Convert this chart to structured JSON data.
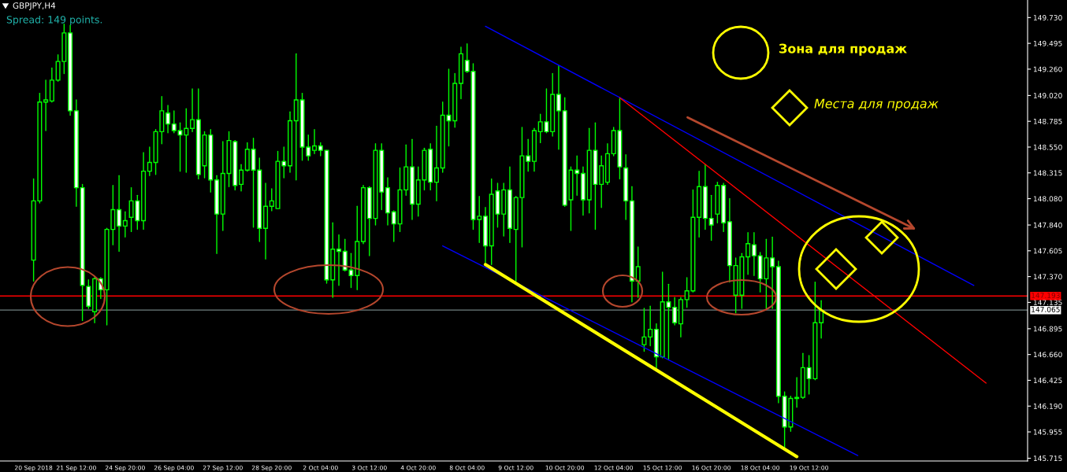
{
  "chart_data": {
    "type": "candlestick",
    "title": "GBPJPY,H4",
    "annotations": [
      "Spread: 149 points.",
      "Зона для продаж",
      "Места для продаж"
    ],
    "categories": [
      "20 Sep 2018",
      null,
      null,
      null,
      null,
      null,
      null,
      "21 Sep 12:00",
      null,
      null,
      null,
      null,
      null,
      null,
      null,
      "24 Sep 20:00",
      null,
      null,
      null,
      null,
      null,
      null,
      null,
      "26 Sep 04:00",
      null,
      null,
      null,
      null,
      null,
      null,
      null,
      "27 Sep 12:00",
      null,
      null,
      null,
      null,
      null,
      null,
      null,
      "28 Sep 20:00",
      null,
      null,
      null,
      null,
      null,
      null,
      null,
      "2 Oct 04:00",
      null,
      null,
      null,
      null,
      null,
      null,
      null,
      "3 Oct 12:00",
      null,
      null,
      null,
      null,
      null,
      null,
      null,
      "4 Oct 20:00",
      null,
      null,
      null,
      null,
      null,
      null,
      null,
      "8 Oct 04:00",
      null,
      null,
      null,
      null,
      null,
      null,
      null,
      "9 Oct 12:00",
      null,
      null,
      null,
      null,
      null,
      null,
      null,
      "10 Oct 20:00",
      null,
      null,
      null,
      null,
      null,
      null,
      null,
      "12 Oct 04:00",
      null,
      null,
      null,
      null,
      null,
      null,
      null,
      "15 Oct 12:00",
      null,
      null,
      null,
      null,
      null,
      null,
      null,
      "16 Oct 20:00",
      null,
      null,
      null,
      null,
      null,
      null,
      null,
      "18 Oct 04:00",
      null,
      null,
      null,
      null,
      null,
      null,
      null,
      "19 Oct 12:00",
      null,
      null,
      null,
      null,
      null,
      null,
      null,
      null,
      null,
      null,
      null,
      null,
      null,
      null,
      null,
      null,
      null,
      null,
      null,
      null,
      null,
      null,
      null,
      null,
      null,
      null,
      null,
      null,
      null,
      null,
      null,
      null,
      null,
      null,
      null
    ],
    "color": "#00ff00",
    "ohlc": [
      [
        147.52,
        148.26,
        147.33,
        148.06
      ],
      [
        148.06,
        149.04,
        148.04,
        148.96
      ],
      [
        148.96,
        149.16,
        148.7,
        148.98
      ],
      [
        148.97,
        149.27,
        148.96,
        149.16
      ],
      [
        149.16,
        149.39,
        149.15,
        149.33
      ],
      [
        149.33,
        149.67,
        149.22,
        149.59
      ],
      [
        149.59,
        149.66,
        148.84,
        148.88
      ],
      [
        148.88,
        148.98,
        148.01,
        148.18
      ],
      [
        148.18,
        148.21,
        146.97,
        147.29
      ],
      [
        147.28,
        147.34,
        147.08,
        147.1
      ],
      [
        147.05,
        147.37,
        146.95,
        147.35
      ],
      [
        147.35,
        147.36,
        147.17,
        147.25
      ],
      [
        147.25,
        147.81,
        146.93,
        147.8
      ],
      [
        147.8,
        148.2,
        147.66,
        147.98
      ],
      [
        147.98,
        148.29,
        147.6,
        147.83
      ],
      [
        147.83,
        147.96,
        147.73,
        147.88
      ],
      [
        147.91,
        148.18,
        147.78,
        148.06
      ],
      [
        148.06,
        148.11,
        147.8,
        147.88
      ],
      [
        147.88,
        148.5,
        147.8,
        148.33
      ],
      [
        148.33,
        148.55,
        148.29,
        148.41
      ],
      [
        148.41,
        148.71,
        148.3,
        148.69
      ],
      [
        148.69,
        149.01,
        148.58,
        148.88
      ],
      [
        148.86,
        148.93,
        148.68,
        148.76
      ],
      [
        148.76,
        148.88,
        148.68,
        148.7
      ],
      [
        148.7,
        148.77,
        148.33,
        148.66
      ],
      [
        148.66,
        148.9,
        148.32,
        148.72
      ],
      [
        148.72,
        149.08,
        148.69,
        148.8
      ],
      [
        148.8,
        149.08,
        148.26,
        148.3
      ],
      [
        148.38,
        148.69,
        148.27,
        148.66
      ],
      [
        148.66,
        148.71,
        148.14,
        148.25
      ],
      [
        148.25,
        148.29,
        147.58,
        147.94
      ],
      [
        147.94,
        148.6,
        147.79,
        148.31
      ],
      [
        148.31,
        148.69,
        148.19,
        148.61
      ],
      [
        148.6,
        148.61,
        148.16,
        148.2
      ],
      [
        148.21,
        148.39,
        148.15,
        148.34
      ],
      [
        148.34,
        148.59,
        148.33,
        148.53
      ],
      [
        148.53,
        148.63,
        147.82,
        148.34
      ],
      [
        148.34,
        148.45,
        147.69,
        147.81
      ],
      [
        147.81,
        148.22,
        147.53,
        148.01
      ],
      [
        148.01,
        148.17,
        147.97,
        148.06
      ],
      [
        147.99,
        148.51,
        147.99,
        148.42
      ],
      [
        148.42,
        148.55,
        148.27,
        148.38
      ],
      [
        148.38,
        148.87,
        148.32,
        148.79
      ],
      [
        148.79,
        149.4,
        148.25,
        148.98
      ],
      [
        148.98,
        149.04,
        148.43,
        148.55
      ],
      [
        148.55,
        148.66,
        148.43,
        148.47
      ],
      [
        148.52,
        148.71,
        148.49,
        148.56
      ],
      [
        148.56,
        148.59,
        148.47,
        148.52
      ],
      [
        148.52,
        148.52,
        147.31,
        147.34
      ],
      [
        147.34,
        147.86,
        147.18,
        147.62
      ],
      [
        147.62,
        147.75,
        147.29,
        147.6
      ],
      [
        147.6,
        147.71,
        147.42,
        147.43
      ],
      [
        147.43,
        147.58,
        147.27,
        147.38
      ],
      [
        147.38,
        148.01,
        147.25,
        147.69
      ],
      [
        147.69,
        148.2,
        147.67,
        148.18
      ],
      [
        148.18,
        148.19,
        147.56,
        147.9
      ],
      [
        147.9,
        148.58,
        147.84,
        148.52
      ],
      [
        148.52,
        148.58,
        147.98,
        148.14
      ],
      [
        148.18,
        148.27,
        147.84,
        147.95
      ],
      [
        147.96,
        147.97,
        147.69,
        147.85
      ],
      [
        147.85,
        148.36,
        147.78,
        148.16
      ],
      [
        148.16,
        148.57,
        148.11,
        148.37
      ],
      [
        148.37,
        148.62,
        147.89,
        148.03
      ],
      [
        148.03,
        148.37,
        147.92,
        148.25
      ],
      [
        148.25,
        148.54,
        148.16,
        148.52
      ],
      [
        148.53,
        148.58,
        148.16,
        148.23
      ],
      [
        148.23,
        148.74,
        148.06,
        148.36
      ],
      [
        148.36,
        148.96,
        148.32,
        148.84
      ],
      [
        148.84,
        149.26,
        148.56,
        148.79
      ],
      [
        148.79,
        149.22,
        148.73,
        149.13
      ],
      [
        149.13,
        149.46,
        148.99,
        149.4
      ],
      [
        149.34,
        149.49,
        149.23,
        149.24
      ],
      [
        149.24,
        149.31,
        147.8,
        147.89
      ],
      [
        147.89,
        148.1,
        147.68,
        147.92
      ],
      [
        147.92,
        148.0,
        147.5,
        147.65
      ],
      [
        147.65,
        148.26,
        147.48,
        148.12
      ],
      [
        148.15,
        148.22,
        147.82,
        147.94
      ],
      [
        147.94,
        148.22,
        147.74,
        148.16
      ],
      [
        148.16,
        148.37,
        147.68,
        147.81
      ],
      [
        147.8,
        148.1,
        147.33,
        148.09
      ],
      [
        148.09,
        148.73,
        147.64,
        148.47
      ],
      [
        148.47,
        148.62,
        148.33,
        148.42
      ],
      [
        148.42,
        148.72,
        148.33,
        148.7
      ],
      [
        148.69,
        148.85,
        148.59,
        148.78
      ],
      [
        148.78,
        149.08,
        148.68,
        148.69
      ],
      [
        148.69,
        149.22,
        148.65,
        149.03
      ],
      [
        149.03,
        149.29,
        148.53,
        148.88
      ],
      [
        148.88,
        149.0,
        148.01,
        148.02
      ],
      [
        148.07,
        148.37,
        147.79,
        148.34
      ],
      [
        148.34,
        148.47,
        148.11,
        148.31
      ],
      [
        148.31,
        148.37,
        147.93,
        148.07
      ],
      [
        148.07,
        148.72,
        147.95,
        148.52
      ],
      [
        148.52,
        148.77,
        147.8,
        148.21
      ],
      [
        148.21,
        148.47,
        148.0,
        148.38
      ],
      [
        148.23,
        148.58,
        148.21,
        148.49
      ],
      [
        148.49,
        148.73,
        148.47,
        148.7
      ],
      [
        148.7,
        148.99,
        148.26,
        148.37
      ],
      [
        148.36,
        148.48,
        147.89,
        148.06
      ],
      [
        148.06,
        148.19,
        147.14,
        147.33
      ],
      [
        147.33,
        147.64,
        147.18,
        147.46
      ],
      [
        146.75,
        147.08,
        146.69,
        146.82
      ],
      [
        146.82,
        147.1,
        146.74,
        146.89
      ],
      [
        146.89,
        146.94,
        146.52,
        146.64
      ],
      [
        146.64,
        147.41,
        146.63,
        147.14
      ],
      [
        147.14,
        147.3,
        146.62,
        147.09
      ],
      [
        147.09,
        147.18,
        146.93,
        146.95
      ],
      [
        146.94,
        147.18,
        146.82,
        147.16
      ],
      [
        147.16,
        147.36,
        147.09,
        147.24
      ],
      [
        147.24,
        148.16,
        147.23,
        147.91
      ],
      [
        147.91,
        148.33,
        147.73,
        148.19
      ],
      [
        148.19,
        148.39,
        147.8,
        147.9
      ],
      [
        147.9,
        148.11,
        147.7,
        147.84
      ],
      [
        147.94,
        148.23,
        147.86,
        148.2
      ],
      [
        148.2,
        148.22,
        147.78,
        147.86
      ],
      [
        147.87,
        148.08,
        147.32,
        147.47
      ],
      [
        147.2,
        147.54,
        147.04,
        147.47
      ],
      [
        147.2,
        147.58,
        147.08,
        147.55
      ],
      [
        147.55,
        147.77,
        147.39,
        147.67
      ],
      [
        147.66,
        147.77,
        147.38,
        147.56
      ],
      [
        147.56,
        147.59,
        147.23,
        147.35
      ],
      [
        147.35,
        147.71,
        147.08,
        147.54
      ],
      [
        147.54,
        147.73,
        147.08,
        147.46
      ],
      [
        147.46,
        147.51,
        146.22,
        146.28
      ],
      [
        146.28,
        146.32,
        145.8,
        146.0
      ],
      [
        146.0,
        146.28,
        145.96,
        146.26
      ],
      [
        146.26,
        146.45,
        146.18,
        146.27
      ],
      [
        146.27,
        146.67,
        146.26,
        146.54
      ],
      [
        146.54,
        146.65,
        146.3,
        146.44
      ],
      [
        146.44,
        147.32,
        146.43,
        146.95
      ],
      [
        146.95,
        147.15,
        146.81,
        147.06
      ],
      null,
      null,
      null,
      null,
      null,
      null,
      null,
      null,
      null,
      null,
      null,
      null,
      null,
      null,
      null,
      null,
      null,
      null,
      null,
      null,
      null,
      null,
      null,
      null,
      null,
      null,
      null,
      null,
      null,
      null,
      null,
      null,
      null
    ],
    "series": [
      {
        "type": "line",
        "color": "#0000ff",
        "values": [
          null,
          null,
          null,
          null,
          null,
          null,
          null,
          null,
          null,
          null,
          null,
          null,
          null,
          null,
          null,
          null,
          null,
          null,
          null,
          null,
          null,
          null,
          null,
          null,
          null,
          null,
          null,
          null,
          null,
          null,
          null,
          null,
          null,
          null,
          null,
          null,
          null,
          null,
          null,
          null,
          null,
          null,
          null,
          null,
          null,
          null,
          null,
          null,
          null,
          null,
          null,
          null,
          null,
          null,
          null,
          null,
          null,
          null,
          null,
          null,
          null,
          null,
          null,
          null,
          null,
          null,
          null,
          null,
          null,
          null,
          null,
          null,
          null,
          null,
          149.65,
          null,
          null,
          null,
          null,
          null,
          null,
          null,
          null,
          null,
          null,
          null,
          null,
          null,
          null,
          null,
          null,
          null,
          null,
          null,
          null,
          null,
          null,
          null,
          null,
          null,
          null,
          null,
          null,
          null,
          null,
          null,
          null,
          null,
          null,
          null,
          null,
          null,
          null,
          null,
          null,
          null,
          null,
          null,
          null,
          null,
          null,
          null,
          null,
          null,
          null,
          null,
          null,
          null,
          null,
          null,
          null,
          null,
          null,
          null,
          null,
          null,
          null,
          null,
          null,
          null,
          null,
          null,
          null,
          null,
          null,
          null,
          null,
          null,
          null,
          null,
          null,
          null,
          null,
          null,
          147.29,
          null,
          null,
          null,
          null,
          null,
          null,
          null,
          null
        ]
      },
      {
        "type": "line",
        "color": "#0000ff",
        "values": [
          null,
          null,
          null,
          null,
          null,
          null,
          null,
          null,
          null,
          null,
          null,
          null,
          null,
          null,
          null,
          null,
          null,
          null,
          null,
          null,
          null,
          null,
          null,
          null,
          null,
          null,
          null,
          null,
          null,
          null,
          null,
          null,
          null,
          null,
          null,
          null,
          null,
          null,
          null,
          null,
          null,
          null,
          null,
          null,
          null,
          null,
          null,
          null,
          null,
          null,
          null,
          null,
          null,
          null,
          null,
          null,
          null,
          null,
          null,
          null,
          null,
          null,
          null,
          null,
          null,
          null,
          null,
          147.65,
          null,
          null,
          null,
          null,
          null,
          null,
          null,
          null,
          null,
          null,
          null,
          null,
          null,
          null,
          null,
          null,
          null,
          null,
          null,
          null,
          null,
          null,
          null,
          null,
          null,
          null,
          null,
          null,
          null,
          null,
          null,
          null,
          null,
          null,
          null,
          null,
          null,
          null,
          null,
          null,
          null,
          null,
          null,
          null,
          null,
          null,
          null,
          null,
          null,
          null,
          null,
          null,
          null,
          null,
          null,
          null,
          null,
          null,
          null,
          null,
          null,
          null,
          null,
          null,
          null,
          null,
          null,
          145.74,
          null,
          null,
          null,
          null,
          null,
          null,
          null,
          null,
          null,
          null,
          null,
          null,
          null,
          null,
          null,
          null,
          null,
          null,
          null,
          null,
          null,
          null,
          null,
          null,
          null,
          null,
          null
        ]
      },
      {
        "type": "line",
        "color": "#ff0000",
        "values": [
          null,
          null,
          null,
          null,
          null,
          null,
          null,
          null,
          null,
          null,
          null,
          null,
          null,
          null,
          null,
          null,
          null,
          null,
          null,
          null,
          null,
          null,
          null,
          null,
          null,
          null,
          null,
          null,
          null,
          null,
          null,
          null,
          null,
          null,
          null,
          null,
          null,
          null,
          null,
          null,
          null,
          null,
          null,
          null,
          null,
          null,
          null,
          null,
          null,
          null,
          null,
          null,
          null,
          null,
          null,
          null,
          null,
          null,
          null,
          null,
          null,
          null,
          null,
          null,
          null,
          null,
          null,
          null,
          null,
          null,
          null,
          null,
          null,
          null,
          null,
          null,
          null,
          null,
          null,
          null,
          null,
          null,
          null,
          null,
          null,
          null,
          null,
          null,
          null,
          null,
          null,
          null,
          null,
          null,
          null,
          null,
          149.0,
          null,
          null,
          null,
          null,
          null,
          null,
          null,
          null,
          null,
          null,
          null,
          null,
          null,
          null,
          null,
          null,
          null,
          null,
          null,
          null,
          null,
          null,
          null,
          null,
          null,
          null,
          null,
          null,
          null,
          null,
          null,
          null,
          null,
          null,
          null,
          null,
          null,
          null,
          null,
          null,
          null,
          null,
          null,
          null,
          null,
          null,
          null,
          null,
          null,
          null,
          null,
          null,
          null,
          null,
          null,
          null,
          null,
          null,
          null,
          146.4,
          null,
          null,
          null,
          null,
          null,
          null
        ]
      },
      {
        "type": "line",
        "color": "#ffff00",
        "values": [
          null,
          null,
          null,
          null,
          null,
          null,
          null,
          null,
          null,
          null,
          null,
          null,
          null,
          null,
          null,
          null,
          null,
          null,
          null,
          null,
          null,
          null,
          null,
          null,
          null,
          null,
          null,
          null,
          null,
          null,
          null,
          null,
          null,
          null,
          null,
          null,
          null,
          null,
          null,
          null,
          null,
          null,
          null,
          null,
          null,
          null,
          null,
          null,
          null,
          null,
          null,
          null,
          null,
          null,
          null,
          null,
          null,
          null,
          null,
          null,
          null,
          null,
          null,
          null,
          null,
          null,
          null,
          null,
          null,
          null,
          null,
          null,
          null,
          null,
          147.48,
          null,
          null,
          null,
          null,
          null,
          null,
          null,
          null,
          null,
          null,
          null,
          null,
          null,
          null,
          null,
          null,
          null,
          null,
          null,
          null,
          null,
          null,
          null,
          null,
          null,
          null,
          null,
          null,
          null,
          null,
          null,
          null,
          null,
          null,
          null,
          null,
          null,
          null,
          null,
          null,
          null,
          null,
          null,
          null,
          null,
          null,
          null,
          null,
          null,
          null,
          145.73,
          null,
          null,
          null,
          null,
          null,
          null,
          null,
          null,
          null,
          null,
          null,
          null,
          null,
          null,
          null,
          null,
          null,
          null,
          null,
          null,
          null,
          null,
          null,
          null,
          null,
          null,
          null,
          null,
          null,
          null,
          null,
          null,
          null,
          null,
          null,
          null,
          null
        ]
      }
    ],
    "ref_lines": [
      {
        "axis": "y",
        "value": 147.193,
        "label": "147.193",
        "color": "#ff0000"
      },
      {
        "axis": "y",
        "value": 147.065,
        "label": "147.065",
        "color": "#708080"
      }
    ],
    "ylim": [
      145.69,
      149.89
    ],
    "yticks": [
      {
        "value": 149.73,
        "label": "149.730"
      },
      149.495,
      {
        "value": 149.26,
        "label": "149.260"
      },
      {
        "value": 149.02,
        "label": "149.020"
      },
      148.785,
      {
        "value": 148.55,
        "label": "148.550"
      },
      148.315,
      {
        "value": 148.08,
        "label": "148.080"
      },
      {
        "value": 147.84,
        "label": "147.840"
      },
      147.605,
      {
        "value": 147.37,
        "label": "147.370"
      },
      147.135,
      146.895,
      {
        "value": 146.66,
        "label": "146.660"
      },
      146.425,
      {
        "value": 146.19,
        "label": "146.190"
      },
      145.955,
      145.715
    ],
    "grid": false,
    "legend": false
  }
}
